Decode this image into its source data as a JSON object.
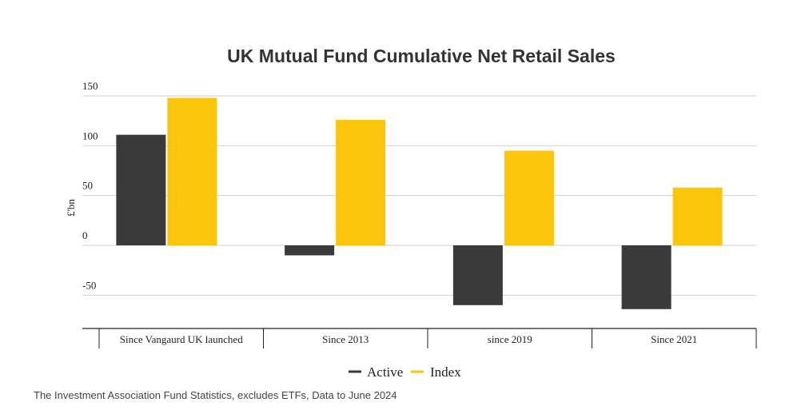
{
  "chart_data": {
    "type": "bar",
    "title": "UK Mutual Fund Cumulative Net Retail Sales",
    "ylabel": "£'bn",
    "xlabel": "",
    "categories": [
      "Since Vangaurd UK launched",
      "Since 2013",
      "since 2019",
      "Since 2021"
    ],
    "series": [
      {
        "name": "Active",
        "color": "#3a3a3a",
        "values": [
          111,
          -10,
          -60,
          -64
        ]
      },
      {
        "name": "Index",
        "color": "#fbc50b",
        "values": [
          148,
          126,
          95,
          58
        ]
      }
    ],
    "ylim": [
      -75,
      150
    ],
    "yticks": [
      150,
      100,
      50,
      0,
      -50
    ],
    "ytick_labels": [
      "150",
      "100",
      "50",
      "0",
      "-50"
    ],
    "grid": true,
    "legend_position": "bottom-center"
  },
  "footer": {
    "source": "The Investment Association Fund Statistics, excludes ETFs, Data to June 2024"
  }
}
